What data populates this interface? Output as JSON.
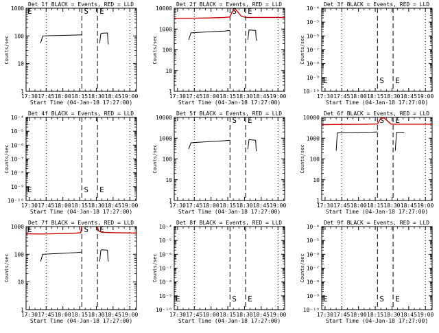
{
  "chart_data": [
    {
      "type": "line",
      "title": "Det 1f BLACK = Events, RED = LLD",
      "xlabel": "Start Time (04-Jan-18 17:27:00)",
      "ylabel": "Counts/sec",
      "yscale": "log",
      "ylim": [
        1,
        1000
      ],
      "yticks": [
        "1",
        "10",
        "100",
        "1000"
      ],
      "xtick_labels": [
        "17:30",
        "17:45",
        "18:00",
        "18:15",
        "18:30",
        "18:45",
        "19:00"
      ],
      "xlim_minutes": [
        0,
        99
      ],
      "markers": [
        {
          "label": "E",
          "minute": 0,
          "style": "solid"
        },
        {
          "label": "S",
          "minute": 50,
          "style": "dashed"
        },
        {
          "label": "E",
          "minute": 64,
          "style": "dashed"
        }
      ],
      "dotted_lines_minutes": [
        18,
        93
      ],
      "series": [
        {
          "color": "black",
          "segments": [
            {
              "x": [
                13,
                15,
                20,
                30,
                40,
                50
              ],
              "y": [
                55,
                100,
                102,
                104,
                106,
                110
              ]
            },
            {
              "x": [
                66,
                67,
                68,
                73,
                73.5,
                74
              ],
              "y": [
                55,
                120,
                125,
                128,
                55,
                50
              ]
            }
          ]
        }
      ]
    },
    {
      "type": "line",
      "title": "Det 2f BLACK = Events, RED = LLD",
      "xlabel": "Start Time (04-Jan-18 17:27:00)",
      "ylabel": "Counts/sec",
      "yscale": "log",
      "ylim": [
        1,
        10000
      ],
      "yticks": [
        "1",
        "10",
        "100",
        "1000",
        "10000"
      ],
      "xtick_labels": [
        "17:30",
        "17:45",
        "18:00",
        "18:15",
        "18:30",
        "18:45",
        "19:00"
      ],
      "xlim_minutes": [
        0,
        99
      ],
      "markers": [
        {
          "label": "S",
          "minute": 50,
          "style": "dashed"
        },
        {
          "label": "E",
          "minute": 64,
          "style": "dashed"
        }
      ],
      "dotted_lines_minutes": [
        18,
        93
      ],
      "series": [
        {
          "color": "red",
          "segments": [
            {
              "x": [
                0,
                15,
                30,
                45,
                50,
                52,
                55,
                60,
                64,
                75,
                99
              ],
              "y": [
                3300,
                3300,
                3400,
                3600,
                3800,
                7000,
                9000,
                4200,
                3600,
                3600,
                3600
              ]
            }
          ]
        },
        {
          "color": "black",
          "segments": [
            {
              "x": [
                13,
                15,
                25,
                35,
                45,
                50
              ],
              "y": [
                300,
                650,
                700,
                750,
                800,
                850
              ]
            },
            {
              "x": [
                66,
                67,
                73,
                73.5,
                74
              ],
              "y": [
                300,
                900,
                850,
                300,
                280
              ]
            }
          ]
        }
      ]
    },
    {
      "type": "line",
      "title": "Det 3f BLACK = Events, RED = LLD",
      "xlabel": "Start Time (04-Jan-18 17:27:00)",
      "ylabel": "Counts/sec",
      "yscale": "log",
      "ylim": [
        1e-10,
        0.0001
      ],
      "yticks": [
        "10⁻¹⁰",
        "10⁻⁹",
        "10⁻⁸",
        "10⁻⁷",
        "10⁻⁶",
        "10⁻⁵",
        "10⁻⁴"
      ],
      "xtick_labels": [
        "17:30",
        "17:45",
        "18:00",
        "18:15",
        "18:30",
        "18:45",
        "19:00"
      ],
      "xlim_minutes": [
        0,
        99
      ],
      "markers": [
        {
          "label": "E",
          "minute": 0,
          "style": "solid"
        },
        {
          "label": "S",
          "minute": 50,
          "style": "dashed"
        },
        {
          "label": "E",
          "minute": 64,
          "style": "dashed"
        }
      ],
      "dotted_lines_minutes": [
        18,
        93
      ],
      "series": []
    },
    {
      "type": "line",
      "title": "Det 4f BLACK = Events, RED = LLD",
      "xlabel": "Start Time (04-Jan-18 17:27:00)",
      "ylabel": "Counts/sec",
      "yscale": "log",
      "ylim": [
        1e-10,
        0.0001
      ],
      "yticks": [
        "10⁻¹⁰",
        "10⁻⁹",
        "10⁻⁸",
        "10⁻⁷",
        "10⁻⁶",
        "10⁻⁵",
        "10⁻⁴"
      ],
      "xtick_labels": [
        "17:30",
        "17:45",
        "18:00",
        "18:15",
        "18:30",
        "18:45",
        "19:00"
      ],
      "xlim_minutes": [
        0,
        99
      ],
      "markers": [
        {
          "label": "E",
          "minute": 0,
          "style": "solid"
        },
        {
          "label": "S",
          "minute": 50,
          "style": "dashed"
        },
        {
          "label": "E",
          "minute": 64,
          "style": "dashed"
        }
      ],
      "dotted_lines_minutes": [
        18,
        93
      ],
      "series": []
    },
    {
      "type": "line",
      "title": "Det 5f BLACK = Events, RED = LLD",
      "xlabel": "Start Time (04-Jan-18 17:27:00)",
      "ylabel": "Counts/sec",
      "yscale": "log",
      "ylim": [
        1,
        10000
      ],
      "yticks": [
        "1",
        "10",
        "100",
        "1000",
        "10000"
      ],
      "xtick_labels": [
        "17:30",
        "17:45",
        "18:00",
        "18:15",
        "18:30",
        "18:45",
        "19:00"
      ],
      "xlim_minutes": [
        0,
        99
      ],
      "markers": [
        {
          "label": "S",
          "minute": 50,
          "style": "dashed"
        },
        {
          "label": "E",
          "minute": 64,
          "style": "dashed"
        }
      ],
      "dotted_lines_minutes": [
        18,
        93
      ],
      "series": [
        {
          "color": "black",
          "segments": [
            {
              "x": [
                13,
                15,
                25,
                35,
                45,
                50
              ],
              "y": [
                300,
                600,
                650,
                700,
                750,
                800
              ]
            },
            {
              "x": [
                66,
                67,
                73,
                73.5,
                74
              ],
              "y": [
                300,
                850,
                800,
                250,
                240
              ]
            }
          ]
        }
      ]
    },
    {
      "type": "line",
      "title": "Det 6f BLACK = Events, RED = LLD",
      "xlabel": "Start Time (04-Jan-18 17:27:00)",
      "ylabel": "Counts/sec",
      "yscale": "log",
      "ylim": [
        1,
        10000
      ],
      "yticks": [
        "1",
        "10",
        "100",
        "1000",
        "10000"
      ],
      "xtick_labels": [
        "17:30",
        "17:45",
        "18:00",
        "18:15",
        "18:30",
        "18:45",
        "19:00"
      ],
      "xlim_minutes": [
        0,
        99
      ],
      "markers": [
        {
          "label": "S",
          "minute": 50,
          "style": "dashed"
        },
        {
          "label": "E",
          "minute": 64,
          "style": "dashed"
        }
      ],
      "dotted_lines_minutes": [
        18,
        93
      ],
      "series": [
        {
          "color": "red",
          "segments": [
            {
              "x": [
                0,
                20,
                40,
                50,
                53,
                56,
                60,
                62,
                64,
                75,
                99
              ],
              "y": [
                4500,
                4600,
                4700,
                4800,
                9000,
                9500,
                6000,
                4800,
                4700,
                4700,
                4700
              ]
            }
          ]
        },
        {
          "color": "black",
          "segments": [
            {
              "x": [
                13,
                14,
                25,
                35,
                45,
                50
              ],
              "y": [
                250,
                1800,
                1850,
                1900,
                1950,
                2000
              ]
            },
            {
              "x": [
                66,
                67,
                73,
                73.5,
                74
              ],
              "y": [
                250,
                1900,
                1900,
                1800,
                1800
              ]
            }
          ]
        }
      ]
    },
    {
      "type": "line",
      "title": "Det 7f BLACK = Events, RED = LLD",
      "xlabel": "Start Time (04-Jan-18 17:27:00)",
      "ylabel": "Counts/sec",
      "yscale": "log",
      "ylim": [
        1,
        1000
      ],
      "yticks": [
        "1",
        "10",
        "100",
        "1000"
      ],
      "xtick_labels": [
        "17:30",
        "17:45",
        "18:00",
        "18:15",
        "18:30",
        "18:45",
        "19:00"
      ],
      "xlim_minutes": [
        0,
        99
      ],
      "markers": [
        {
          "label": "E",
          "minute": 0,
          "style": "solid"
        },
        {
          "label": "S",
          "minute": 50,
          "style": "dashed"
        },
        {
          "label": "E",
          "minute": 64,
          "style": "dashed"
        }
      ],
      "dotted_lines_minutes": [
        18,
        93
      ],
      "series": [
        {
          "color": "red",
          "segments": [
            {
              "x": [
                0,
                15,
                30,
                45,
                49,
                50
              ],
              "y": [
                550,
                540,
                560,
                580,
                600,
                1000
              ]
            },
            {
              "x": [
                64,
                65,
                68,
                80,
                99
              ],
              "y": [
                1000,
                700,
                620,
                600,
                580
              ]
            }
          ]
        },
        {
          "color": "black",
          "segments": [
            {
              "x": [
                13,
                15,
                25,
                35,
                45,
                50
              ],
              "y": [
                55,
                100,
                105,
                110,
                115,
                120
              ]
            },
            {
              "x": [
                66,
                67,
                68,
                73,
                73.5,
                74
              ],
              "y": [
                55,
                140,
                145,
                140,
                60,
                55
              ]
            }
          ]
        }
      ]
    },
    {
      "type": "line",
      "title": "Det 8f BLACK = Events, RED = LLD",
      "xlabel": "Start Time (04-Jan-18 17:27:00)",
      "ylabel": "Counts/sec",
      "yscale": "log",
      "ylim": [
        1e-10,
        0.0001
      ],
      "yticks": [
        "10⁻¹⁰",
        "10⁻⁹",
        "10⁻⁸",
        "10⁻⁷",
        "10⁻⁶",
        "10⁻⁵",
        "10⁻⁴"
      ],
      "xtick_labels": [
        "17:30",
        "17:45",
        "18:00",
        "18:15",
        "18:30",
        "18:45",
        "19:00"
      ],
      "xlim_minutes": [
        0,
        99
      ],
      "markers": [
        {
          "label": "E",
          "minute": 0,
          "style": "solid"
        },
        {
          "label": "S",
          "minute": 50,
          "style": "dashed"
        },
        {
          "label": "E",
          "minute": 64,
          "style": "dashed"
        }
      ],
      "dotted_lines_minutes": [
        18,
        93
      ],
      "series": []
    },
    {
      "type": "line",
      "title": "Det 9f BLACK = Events, RED = LLD",
      "xlabel": "Start Time (04-Jan-18 17:27:00)",
      "ylabel": "Counts/sec",
      "yscale": "log",
      "ylim": [
        1e-10,
        0.0001
      ],
      "yticks": [
        "10⁻¹⁰",
        "10⁻⁹",
        "10⁻⁸",
        "10⁻⁷",
        "10⁻⁶",
        "10⁻⁵",
        "10⁻⁴"
      ],
      "xtick_labels": [
        "17:30",
        "17:45",
        "18:00",
        "18:15",
        "18:30",
        "18:45",
        "19:00"
      ],
      "xlim_minutes": [
        0,
        99
      ],
      "markers": [
        {
          "label": "E",
          "minute": 0,
          "style": "solid"
        },
        {
          "label": "S",
          "minute": 50,
          "style": "dashed"
        },
        {
          "label": "E",
          "minute": 64,
          "style": "dashed"
        }
      ],
      "dotted_lines_minutes": [
        18,
        93
      ],
      "series": []
    }
  ]
}
